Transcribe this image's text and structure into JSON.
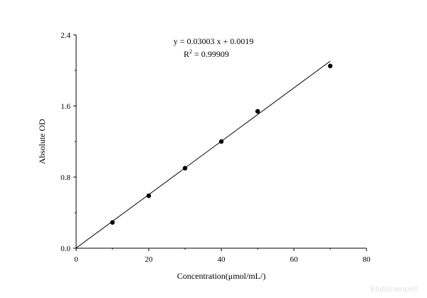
{
  "chart_data": {
    "type": "scatter",
    "xlabel": "Concentration(μmol/mL/)",
    "ylabel": "Absolute OD",
    "xlim": [
      0,
      80
    ],
    "ylim": [
      0,
      2.4
    ],
    "xticks": [
      "0",
      "20",
      "40",
      "60",
      "80"
    ],
    "yticks": [
      "0.0",
      "0.8",
      "1.6",
      "2.4"
    ],
    "grid": false,
    "series": [
      {
        "x": [
          10,
          20,
          30,
          40,
          50,
          70
        ],
        "y": [
          0.29,
          0.59,
          0.9,
          1.2,
          1.54,
          2.05
        ]
      }
    ],
    "fit_line": {
      "slope": 0.03003,
      "intercept": 0.0019,
      "x_range": [
        0,
        70
      ]
    },
    "annotations": {
      "equation": "y = 0.03003 x + 0.0019",
      "r2_prefix": "R",
      "r2_sup": "2",
      "r2_value": " = 0.99909"
    }
  },
  "watermark": "Elabscience®"
}
